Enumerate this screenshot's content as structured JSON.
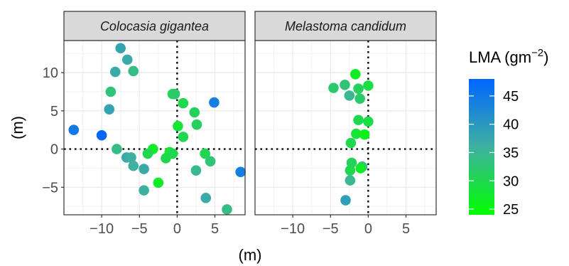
{
  "chart_data": {
    "type": "scatter",
    "xlabel": "(m)",
    "ylabel": "(m)",
    "xlim": [
      -15,
      9
    ],
    "ylim": [
      -8.6,
      14.2
    ],
    "xticks": [
      -10,
      -5,
      0,
      5
    ],
    "yticks": [
      -5,
      0,
      5,
      10
    ],
    "xtick_labels": [
      "−10",
      "−5",
      "0",
      "5"
    ],
    "ytick_labels": [
      "−5",
      "0",
      "5",
      "10"
    ],
    "grid": true,
    "reference_lines": {
      "x": 0,
      "y": 0,
      "style": "dotted"
    },
    "legend": {
      "title": "LMA (gm",
      "title_sup": "−2",
      "title_close": ")",
      "placement": "right",
      "range": [
        24,
        48
      ],
      "ticks": [
        25,
        30,
        35,
        40,
        45
      ],
      "tick_labels": [
        "25",
        "30",
        "35",
        "40",
        "45"
      ],
      "colors": [
        "#00ff00",
        "#3399ff",
        "#0066ff"
      ]
    },
    "panels": [
      {
        "title": "Colocasia gigantea",
        "points": [
          {
            "x": -7.5,
            "y": 13.2,
            "lma": 38
          },
          {
            "x": -6.6,
            "y": 11.7,
            "lma": 37
          },
          {
            "x": -8.2,
            "y": 10.1,
            "lma": 37
          },
          {
            "x": -5.8,
            "y": 10.2,
            "lma": 34
          },
          {
            "x": -8.8,
            "y": 7.5,
            "lma": 33
          },
          {
            "x": -9.0,
            "y": 5.2,
            "lma": 38
          },
          {
            "x": -13.7,
            "y": 2.5,
            "lma": 45
          },
          {
            "x": -10.0,
            "y": 1.8,
            "lma": 48
          },
          {
            "x": -8.0,
            "y": 0.0,
            "lma": 34
          },
          {
            "x": -6.7,
            "y": -1.1,
            "lma": 37
          },
          {
            "x": -6.1,
            "y": -1.1,
            "lma": 36
          },
          {
            "x": -5.8,
            "y": -2.2,
            "lma": 36
          },
          {
            "x": -4.4,
            "y": -2.6,
            "lma": 37
          },
          {
            "x": -3.2,
            "y": 0.0,
            "lma": 27
          },
          {
            "x": -3.9,
            "y": -0.6,
            "lma": 30
          },
          {
            "x": -4.4,
            "y": -5.4,
            "lma": 36
          },
          {
            "x": -2.5,
            "y": -4.4,
            "lma": 27
          },
          {
            "x": -1.5,
            "y": -1.2,
            "lma": 30
          },
          {
            "x": -1.0,
            "y": -0.4,
            "lma": 28
          },
          {
            "x": -0.6,
            "y": -0.6,
            "lma": 30
          },
          {
            "x": -0.6,
            "y": 7.2,
            "lma": 30
          },
          {
            "x": -0.3,
            "y": 7.2,
            "lma": 32
          },
          {
            "x": 0.8,
            "y": 6.0,
            "lma": 30
          },
          {
            "x": 2.3,
            "y": 4.8,
            "lma": 31
          },
          {
            "x": 0.1,
            "y": 3.0,
            "lma": 28
          },
          {
            "x": 0.8,
            "y": 1.6,
            "lma": 30
          },
          {
            "x": 2.6,
            "y": 3.2,
            "lma": 31
          },
          {
            "x": 4.9,
            "y": 6.1,
            "lma": 44
          },
          {
            "x": 3.7,
            "y": -0.6,
            "lma": 30
          },
          {
            "x": 4.4,
            "y": -1.6,
            "lma": 33
          },
          {
            "x": 2.5,
            "y": -2.8,
            "lma": 35
          },
          {
            "x": 3.8,
            "y": -6.4,
            "lma": 37
          },
          {
            "x": 6.6,
            "y": -7.9,
            "lma": 34
          },
          {
            "x": 8.4,
            "y": -3.0,
            "lma": 44
          }
        ]
      },
      {
        "title": "Melastoma candidum",
        "points": [
          {
            "x": -1.7,
            "y": 9.8,
            "lma": 27
          },
          {
            "x": -3.1,
            "y": 8.4,
            "lma": 33
          },
          {
            "x": -4.6,
            "y": 8.0,
            "lma": 32
          },
          {
            "x": -1.3,
            "y": 7.9,
            "lma": 31
          },
          {
            "x": 0.0,
            "y": 8.3,
            "lma": 29
          },
          {
            "x": -2.5,
            "y": 7.0,
            "lma": 35
          },
          {
            "x": -1.1,
            "y": 6.6,
            "lma": 32
          },
          {
            "x": -1.3,
            "y": 3.8,
            "lma": 30
          },
          {
            "x": 0.0,
            "y": 3.6,
            "lma": 29
          },
          {
            "x": -1.6,
            "y": 2.0,
            "lma": 28
          },
          {
            "x": -0.5,
            "y": 1.9,
            "lma": 26
          },
          {
            "x": -2.3,
            "y": 0.8,
            "lma": 30
          },
          {
            "x": -2.2,
            "y": -1.8,
            "lma": 31
          },
          {
            "x": -2.4,
            "y": -2.8,
            "lma": 30
          },
          {
            "x": -0.8,
            "y": -2.3,
            "lma": 35
          },
          {
            "x": -1.0,
            "y": -2.5,
            "lma": 27
          },
          {
            "x": -2.4,
            "y": -4.1,
            "lma": 35
          },
          {
            "x": -3.0,
            "y": -6.7,
            "lma": 39
          }
        ]
      }
    ]
  }
}
